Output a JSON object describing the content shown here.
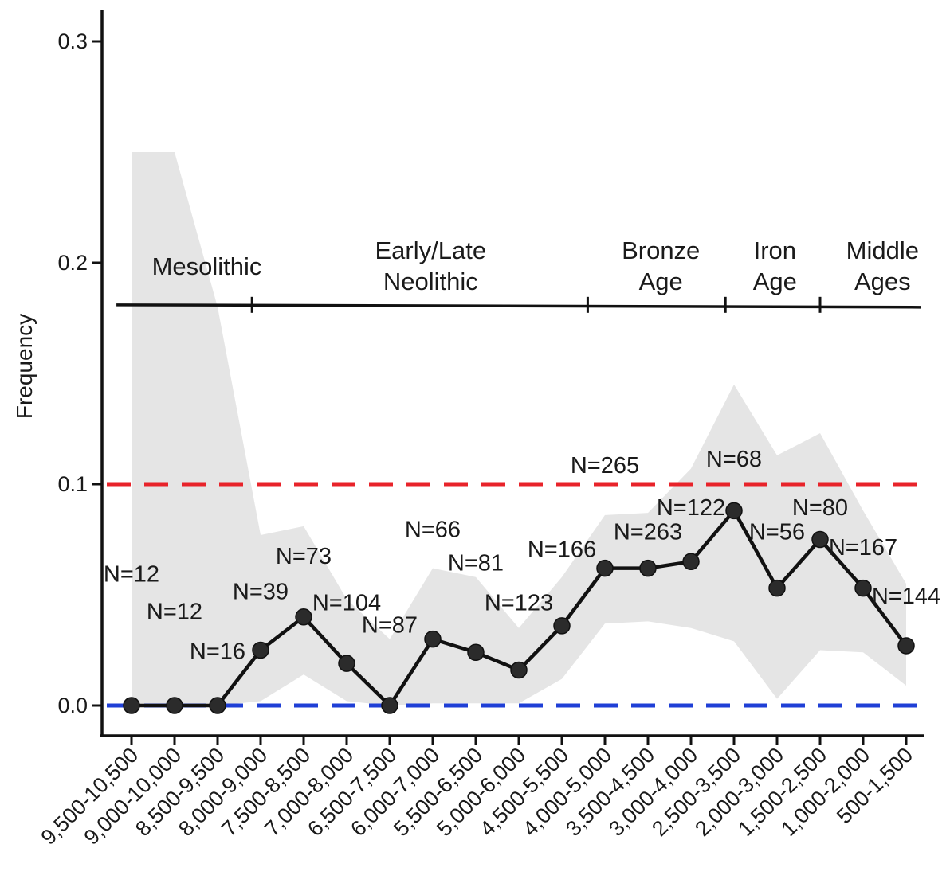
{
  "chart_data": {
    "type": "line",
    "ylabel": "Frequency",
    "ylim": [
      -0.013,
      0.315
    ],
    "yticks": [
      "0.0",
      "0.1",
      "0.2",
      "0.3"
    ],
    "categories": [
      "9,500-10,500",
      "9,000-10,000",
      "8,500-9,500",
      "8,000-9,000",
      "7,500-8,500",
      "7,000-8,000",
      "6,500-7,500",
      "6,000-7,000",
      "5,500-6,500",
      "5,000-6,000",
      "4,500-5,500",
      "4,000-5,000",
      "3,500-4,500",
      "3,000-4,000",
      "2,500-3,500",
      "2,000-3,000",
      "1,500-2,500",
      "1,000-2,000",
      "500-1,500"
    ],
    "values": [
      0.0,
      0.0,
      0.0,
      0.025,
      0.04,
      0.019,
      0.0,
      0.03,
      0.024,
      0.016,
      0.036,
      0.062,
      0.062,
      0.065,
      0.088,
      0.053,
      0.075,
      0.053,
      0.027
    ],
    "ci_upper": [
      0.25,
      0.25,
      0.18,
      0.077,
      0.081,
      0.048,
      0.03,
      0.062,
      0.058,
      0.035,
      0.058,
      0.086,
      0.087,
      0.107,
      0.145,
      0.113,
      0.123,
      0.088,
      0.055
    ],
    "ci_lower": [
      0.0,
      0.0,
      0.0,
      0.002,
      0.014,
      0.002,
      0.0,
      0.001,
      0.001,
      0.001,
      0.012,
      0.037,
      0.038,
      0.035,
      0.029,
      0.003,
      0.025,
      0.024,
      0.009
    ],
    "reference_lines": [
      {
        "y": 0.1,
        "color": "#e8232a",
        "style": "dashed"
      },
      {
        "y": 0.0,
        "color": "#1f3fd6",
        "style": "dashed"
      }
    ],
    "annotations": [
      {
        "text": "N=12",
        "x": 0,
        "y": 0.056
      },
      {
        "text": "N=12",
        "x": 1,
        "y": 0.039
      },
      {
        "text": "N=16",
        "x": 2,
        "y": 0.021
      },
      {
        "text": "N=39",
        "x": 3,
        "y": 0.048
      },
      {
        "text": "N=73",
        "x": 4,
        "y": 0.064
      },
      {
        "text": "N=104",
        "x": 5,
        "y": 0.043
      },
      {
        "text": "N=87",
        "x": 6,
        "y": 0.033
      },
      {
        "text": "N=66",
        "x": 7,
        "y": 0.076
      },
      {
        "text": "N=81",
        "x": 8,
        "y": 0.061
      },
      {
        "text": "N=123",
        "x": 9,
        "y": 0.043
      },
      {
        "text": "N=166",
        "x": 10,
        "y": 0.067
      },
      {
        "text": "N=265",
        "x": 11,
        "y": 0.105
      },
      {
        "text": "N=263",
        "x": 12,
        "y": 0.075
      },
      {
        "text": "N=122",
        "x": 13,
        "y": 0.086
      },
      {
        "text": "N=68",
        "x": 14,
        "y": 0.108
      },
      {
        "text": "N=56",
        "x": 15,
        "y": 0.075
      },
      {
        "text": "N=80",
        "x": 16,
        "y": 0.086
      },
      {
        "text": "N=167",
        "x": 17,
        "y": 0.068
      },
      {
        "text": "N=144",
        "x": 18,
        "y": 0.046
      }
    ],
    "periods": {
      "bar_y": 0.181,
      "boundaries": [
        2.8,
        10.6,
        13.8,
        16.0
      ],
      "bar_start": -0.35,
      "bar_end": 18.35,
      "labels": [
        {
          "lines": [
            "Mesolithic"
          ],
          "x": 1.75
        },
        {
          "lines": [
            "Early/Late",
            "Neolithic"
          ],
          "x": 6.95
        },
        {
          "lines": [
            "Bronze",
            "Age"
          ],
          "x": 12.3
        },
        {
          "lines": [
            "Iron",
            "Age"
          ],
          "x": 14.95
        },
        {
          "lines": [
            "Middle",
            "Ages"
          ],
          "x": 17.45
        }
      ]
    },
    "colors": {
      "ci_band": "#e5e5e5",
      "line": "#111111",
      "point": "#2b2b2b",
      "axis": "#111111"
    },
    "grid": false,
    "legend": "none"
  }
}
